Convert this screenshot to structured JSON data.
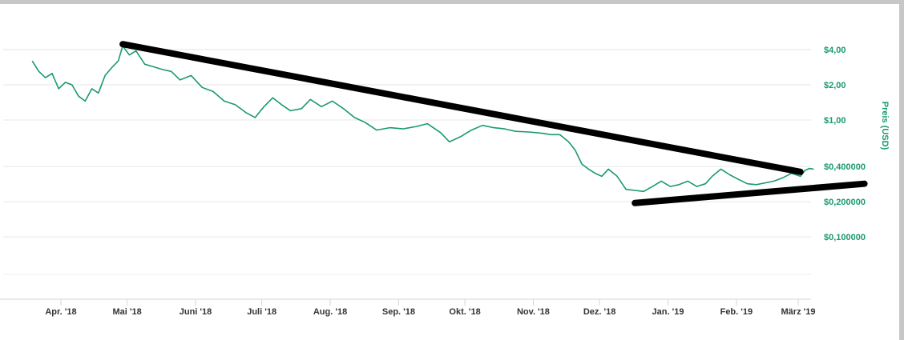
{
  "chart_data": {
    "type": "line",
    "title": "",
    "xlabel": "",
    "ylabel": "Preis (USD)",
    "y_scale": "log",
    "ylim": [
      0.05,
      6.0
    ],
    "grid": true,
    "x_tick_labels": [
      "Apr. '18",
      "Mai '18",
      "Juni '18",
      "Juli '18",
      "Aug. '18",
      "Sep. '18",
      "Okt. '18",
      "Nov. '18",
      "Dez. '18",
      "Jan. '19",
      "Feb. '19",
      "März '19"
    ],
    "y_ticks": [
      {
        "value": 4.0,
        "label": "$4,00"
      },
      {
        "value": 2.0,
        "label": "$2,00"
      },
      {
        "value": 1.0,
        "label": "$1,00"
      },
      {
        "value": 0.4,
        "label": "$0,400000"
      },
      {
        "value": 0.2,
        "label": "$0,200000"
      },
      {
        "value": 0.1,
        "label": "$0,100000"
      }
    ],
    "series": [
      {
        "color": "#199a6b",
        "points": [
          [
            "2018-03-19",
            3.2
          ],
          [
            "2018-03-22",
            2.6
          ],
          [
            "2018-03-25",
            2.3
          ],
          [
            "2018-03-28",
            2.5
          ],
          [
            "2018-03-31",
            1.85
          ],
          [
            "2018-04-03",
            2.1
          ],
          [
            "2018-04-06",
            2.0
          ],
          [
            "2018-04-09",
            1.6
          ],
          [
            "2018-04-12",
            1.45
          ],
          [
            "2018-04-15",
            1.85
          ],
          [
            "2018-04-18",
            1.7
          ],
          [
            "2018-04-21",
            2.4
          ],
          [
            "2018-04-24",
            2.8
          ],
          [
            "2018-04-27",
            3.2
          ],
          [
            "2018-04-29",
            4.3
          ],
          [
            "2018-05-02",
            3.6
          ],
          [
            "2018-05-05",
            3.9
          ],
          [
            "2018-05-09",
            3.0
          ],
          [
            "2018-05-13",
            2.85
          ],
          [
            "2018-05-17",
            2.7
          ],
          [
            "2018-05-21",
            2.6
          ],
          [
            "2018-05-25",
            2.2
          ],
          [
            "2018-05-30",
            2.4
          ],
          [
            "2018-06-04",
            1.9
          ],
          [
            "2018-06-09",
            1.75
          ],
          [
            "2018-06-14",
            1.45
          ],
          [
            "2018-06-19",
            1.35
          ],
          [
            "2018-06-24",
            1.15
          ],
          [
            "2018-06-28",
            1.05
          ],
          [
            "2018-07-02",
            1.3
          ],
          [
            "2018-07-06",
            1.55
          ],
          [
            "2018-07-10",
            1.35
          ],
          [
            "2018-07-14",
            1.2
          ],
          [
            "2018-07-19",
            1.25
          ],
          [
            "2018-07-23",
            1.5
          ],
          [
            "2018-07-28",
            1.3
          ],
          [
            "2018-08-02",
            1.45
          ],
          [
            "2018-08-07",
            1.25
          ],
          [
            "2018-08-12",
            1.05
          ],
          [
            "2018-08-17",
            0.95
          ],
          [
            "2018-08-22",
            0.82
          ],
          [
            "2018-08-28",
            0.86
          ],
          [
            "2018-09-03",
            0.84
          ],
          [
            "2018-09-09",
            0.88
          ],
          [
            "2018-09-14",
            0.93
          ],
          [
            "2018-09-20",
            0.78
          ],
          [
            "2018-09-24",
            0.65
          ],
          [
            "2018-09-29",
            0.72
          ],
          [
            "2018-10-04",
            0.82
          ],
          [
            "2018-10-09",
            0.9
          ],
          [
            "2018-10-14",
            0.86
          ],
          [
            "2018-10-19",
            0.84
          ],
          [
            "2018-10-24",
            0.8
          ],
          [
            "2018-10-30",
            0.79
          ],
          [
            "2018-11-05",
            0.77
          ],
          [
            "2018-11-09",
            0.75
          ],
          [
            "2018-11-13",
            0.75
          ],
          [
            "2018-11-17",
            0.65
          ],
          [
            "2018-11-20",
            0.55
          ],
          [
            "2018-11-23",
            0.42
          ],
          [
            "2018-11-26",
            0.38
          ],
          [
            "2018-11-29",
            0.35
          ],
          [
            "2018-12-02",
            0.33
          ],
          [
            "2018-12-05",
            0.38
          ],
          [
            "2018-12-09",
            0.33
          ],
          [
            "2018-12-13",
            0.255
          ],
          [
            "2018-12-17",
            0.25
          ],
          [
            "2018-12-21",
            0.245
          ],
          [
            "2018-12-25",
            0.27
          ],
          [
            "2018-12-29",
            0.3
          ],
          [
            "2019-01-02",
            0.27
          ],
          [
            "2019-01-06",
            0.28
          ],
          [
            "2019-01-10",
            0.3
          ],
          [
            "2019-01-14",
            0.27
          ],
          [
            "2019-01-18",
            0.285
          ],
          [
            "2019-01-21",
            0.33
          ],
          [
            "2019-01-25",
            0.38
          ],
          [
            "2019-01-29",
            0.34
          ],
          [
            "2019-02-02",
            0.31
          ],
          [
            "2019-02-06",
            0.285
          ],
          [
            "2019-02-10",
            0.28
          ],
          [
            "2019-02-14",
            0.29
          ],
          [
            "2019-02-18",
            0.3
          ],
          [
            "2019-02-22",
            0.32
          ],
          [
            "2019-02-26",
            0.35
          ],
          [
            "2019-03-02",
            0.33
          ],
          [
            "2019-03-04",
            0.37
          ],
          [
            "2019-03-06",
            0.385
          ],
          [
            "2019-03-08",
            0.38
          ]
        ]
      }
    ],
    "annotations": [
      {
        "type": "trendline",
        "color": "#000000",
        "from": [
          "2018-04-29",
          4.45
        ],
        "to": [
          "2019-03-02",
          0.36
        ]
      },
      {
        "type": "trendline",
        "color": "#000000",
        "from": [
          "2018-12-17",
          0.195
        ],
        "to": [
          "2019-03-31",
          0.285
        ]
      }
    ]
  }
}
